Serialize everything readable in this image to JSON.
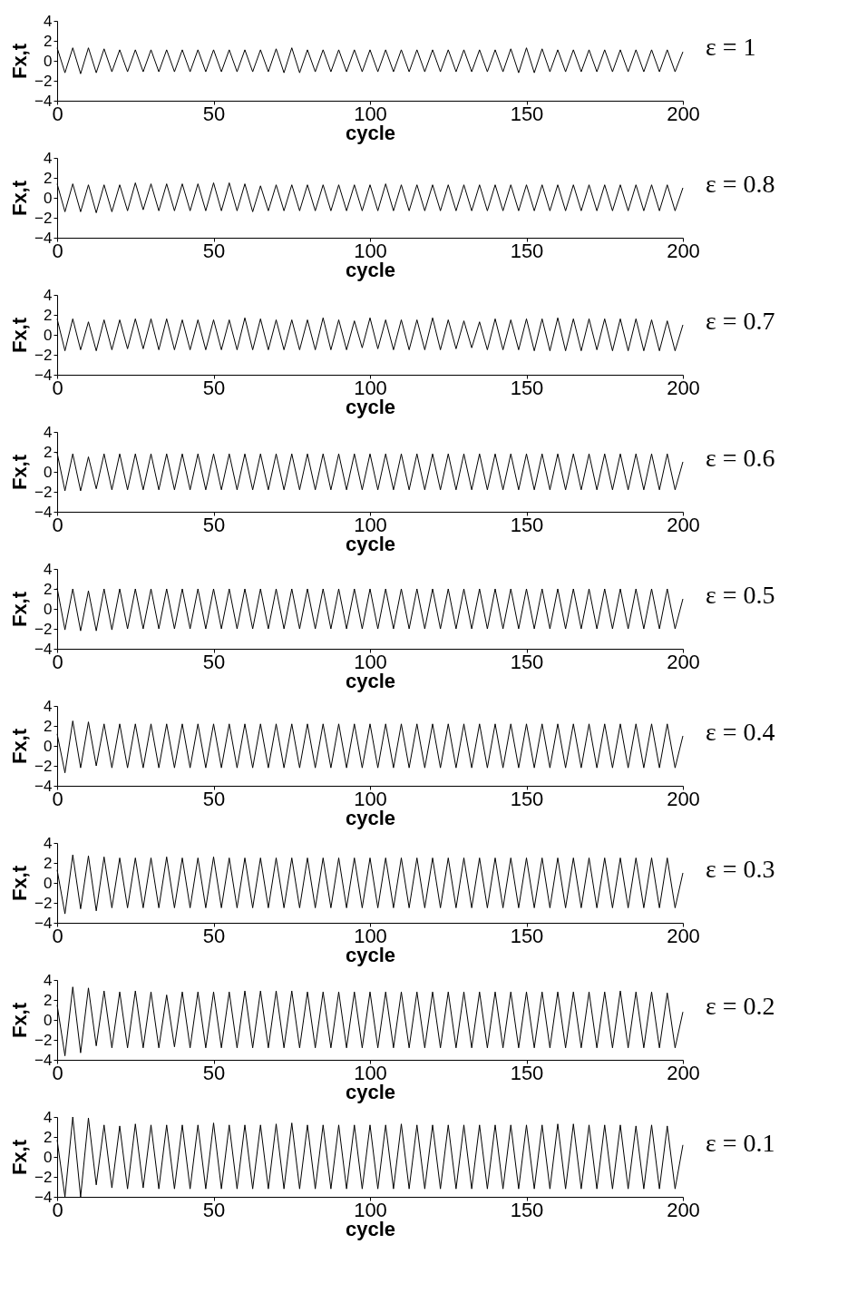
{
  "chart_data": [
    {
      "type": "line",
      "xlabel": "cycle",
      "ylabel": "Fx,t",
      "annotations": [
        "ε = 1"
      ],
      "color": "#000000",
      "xlim": [
        0,
        200
      ],
      "xticks": [
        0,
        50,
        100,
        150,
        200
      ],
      "ylim": [
        -4,
        4
      ],
      "yticks": [
        -4,
        -2,
        0,
        2,
        4
      ],
      "x": [
        0,
        2.5,
        5,
        7.5,
        10,
        12.5,
        15,
        17.5,
        20,
        22.5,
        25,
        27.5,
        30,
        32.5,
        35,
        37.5,
        40,
        42.5,
        45,
        47.5,
        50,
        52.5,
        55,
        57.5,
        60,
        62.5,
        65,
        67.5,
        70,
        72.5,
        75,
        77.5,
        80,
        82.5,
        85,
        87.5,
        90,
        92.5,
        95,
        97.5,
        100,
        102.5,
        105,
        107.5,
        110,
        112.5,
        115,
        117.5,
        120,
        122.5,
        125,
        127.5,
        130,
        132.5,
        135,
        137.5,
        140,
        142.5,
        145,
        147.5,
        150,
        152.5,
        155,
        157.5,
        160,
        162.5,
        165,
        167.5,
        170,
        172.5,
        175,
        177.5,
        180,
        182.5,
        185,
        187.5,
        190,
        192.5,
        195,
        197.5,
        200
      ],
      "values": [
        1.3,
        -1.2,
        1.3,
        -1.3,
        1.3,
        -1.2,
        1.2,
        -1.1,
        1.1,
        -1.1,
        1.1,
        -1.1,
        1.1,
        -1.1,
        1.1,
        -1.1,
        1.1,
        -1.1,
        1.1,
        -1.1,
        1.1,
        -1.1,
        1.1,
        -1.1,
        1.1,
        -1.1,
        1.1,
        -1.1,
        1.2,
        -1.2,
        1.3,
        -1.2,
        1.1,
        -1.1,
        1.1,
        -1.1,
        1.1,
        -1.1,
        1.1,
        -1.1,
        1.1,
        -1.1,
        1.1,
        -1.1,
        1.1,
        -1.1,
        1.1,
        -1.1,
        1.1,
        -1.1,
        1.1,
        -1.1,
        1.1,
        -1.1,
        1.1,
        -1.1,
        1.1,
        -1.1,
        1.2,
        -1.2,
        1.3,
        -1.2,
        1.2,
        -1.1,
        1.1,
        -1.1,
        1.1,
        -1.1,
        1.1,
        -1.1,
        1.1,
        -1.1,
        1.1,
        -1.1,
        1.1,
        -1.1,
        1.1,
        -1.1,
        1.1,
        -1.1,
        0.9
      ]
    },
    {
      "type": "line",
      "xlabel": "cycle",
      "ylabel": "Fx,t",
      "annotations": [
        "ε = 0.8"
      ],
      "color": "#000000",
      "xlim": [
        0,
        200
      ],
      "xticks": [
        0,
        50,
        100,
        150,
        200
      ],
      "ylim": [
        -4,
        4
      ],
      "yticks": [
        -4,
        -2,
        0,
        2,
        4
      ],
      "x": [
        0,
        2.5,
        5,
        7.5,
        10,
        12.5,
        15,
        17.5,
        20,
        22.5,
        25,
        27.5,
        30,
        32.5,
        35,
        37.5,
        40,
        42.5,
        45,
        47.5,
        50,
        52.5,
        55,
        57.5,
        60,
        62.5,
        65,
        67.5,
        70,
        72.5,
        75,
        77.5,
        80,
        82.5,
        85,
        87.5,
        90,
        92.5,
        95,
        97.5,
        100,
        102.5,
        105,
        107.5,
        110,
        112.5,
        115,
        117.5,
        120,
        122.5,
        125,
        127.5,
        130,
        132.5,
        135,
        137.5,
        140,
        142.5,
        145,
        147.5,
        150,
        152.5,
        155,
        157.5,
        160,
        162.5,
        165,
        167.5,
        170,
        172.5,
        175,
        177.5,
        180,
        182.5,
        185,
        187.5,
        190,
        192.5,
        195,
        197.5,
        200
      ],
      "values": [
        1.4,
        -1.4,
        1.4,
        -1.4,
        1.3,
        -1.5,
        1.3,
        -1.4,
        1.3,
        -1.3,
        1.5,
        -1.2,
        1.4,
        -1.3,
        1.4,
        -1.3,
        1.4,
        -1.3,
        1.4,
        -1.3,
        1.5,
        -1.3,
        1.5,
        -1.3,
        1.4,
        -1.4,
        1.2,
        -1.3,
        1.3,
        -1.3,
        1.3,
        -1.3,
        1.3,
        -1.3,
        1.3,
        -1.3,
        1.3,
        -1.3,
        1.3,
        -1.3,
        1.3,
        -1.3,
        1.4,
        -1.3,
        1.3,
        -1.3,
        1.3,
        -1.3,
        1.3,
        -1.3,
        1.3,
        -1.3,
        1.3,
        -1.3,
        1.3,
        -1.3,
        1.3,
        -1.3,
        1.3,
        -1.3,
        1.3,
        -1.3,
        1.3,
        -1.3,
        1.3,
        -1.3,
        1.3,
        -1.3,
        1.3,
        -1.3,
        1.3,
        -1.3,
        1.3,
        -1.3,
        1.3,
        -1.3,
        1.3,
        -1.3,
        1.3,
        -1.3,
        1.0
      ]
    },
    {
      "type": "line",
      "xlabel": "cycle",
      "ylabel": "Fx,t",
      "annotations": [
        "ε = 0.7"
      ],
      "color": "#000000",
      "xlim": [
        0,
        200
      ],
      "xticks": [
        0,
        50,
        100,
        150,
        200
      ],
      "ylim": [
        -4,
        4
      ],
      "yticks": [
        -4,
        -2,
        0,
        2,
        4
      ],
      "x": [
        0,
        2.5,
        5,
        7.5,
        10,
        12.5,
        15,
        17.5,
        20,
        22.5,
        25,
        27.5,
        30,
        32.5,
        35,
        37.5,
        40,
        42.5,
        45,
        47.5,
        50,
        52.5,
        55,
        57.5,
        60,
        62.5,
        65,
        67.5,
        70,
        72.5,
        75,
        77.5,
        80,
        82.5,
        85,
        87.5,
        90,
        92.5,
        95,
        97.5,
        100,
        102.5,
        105,
        107.5,
        110,
        112.5,
        115,
        117.5,
        120,
        122.5,
        125,
        127.5,
        130,
        132.5,
        135,
        137.5,
        140,
        142.5,
        145,
        147.5,
        150,
        152.5,
        155,
        157.5,
        160,
        162.5,
        165,
        167.5,
        170,
        172.5,
        175,
        177.5,
        180,
        182.5,
        185,
        187.5,
        190,
        192.5,
        195,
        197.5,
        200
      ],
      "values": [
        1.6,
        -1.6,
        1.6,
        -1.5,
        1.3,
        -1.6,
        1.5,
        -1.5,
        1.5,
        -1.4,
        1.6,
        -1.4,
        1.6,
        -1.5,
        1.6,
        -1.5,
        1.5,
        -1.5,
        1.5,
        -1.5,
        1.5,
        -1.5,
        1.5,
        -1.5,
        1.7,
        -1.5,
        1.6,
        -1.5,
        1.5,
        -1.5,
        1.5,
        -1.5,
        1.5,
        -1.5,
        1.7,
        -1.5,
        1.5,
        -1.5,
        1.4,
        -1.3,
        1.7,
        -1.4,
        1.5,
        -1.5,
        1.5,
        -1.5,
        1.5,
        -1.5,
        1.7,
        -1.5,
        1.5,
        -1.4,
        1.4,
        -1.3,
        1.3,
        -1.5,
        1.6,
        -1.5,
        1.5,
        -1.5,
        1.6,
        -1.6,
        1.6,
        -1.6,
        1.7,
        -1.6,
        1.6,
        -1.6,
        1.6,
        -1.5,
        1.6,
        -1.6,
        1.6,
        -1.6,
        1.6,
        -1.6,
        1.5,
        -1.6,
        1.4,
        -1.6,
        1.0
      ]
    },
    {
      "type": "line",
      "xlabel": "cycle",
      "ylabel": "Fx,t",
      "annotations": [
        "ε = 0.6"
      ],
      "color": "#000000",
      "xlim": [
        0,
        200
      ],
      "xticks": [
        0,
        50,
        100,
        150,
        200
      ],
      "ylim": [
        -4,
        4
      ],
      "yticks": [
        -4,
        -2,
        0,
        2,
        4
      ],
      "x": [
        0,
        2.5,
        5,
        7.5,
        10,
        12.5,
        15,
        17.5,
        20,
        22.5,
        25,
        27.5,
        30,
        32.5,
        35,
        37.5,
        40,
        42.5,
        45,
        47.5,
        50,
        52.5,
        55,
        57.5,
        60,
        62.5,
        65,
        67.5,
        70,
        72.5,
        75,
        77.5,
        80,
        82.5,
        85,
        87.5,
        90,
        92.5,
        95,
        97.5,
        100,
        102.5,
        105,
        107.5,
        110,
        112.5,
        115,
        117.5,
        120,
        122.5,
        125,
        127.5,
        130,
        132.5,
        135,
        137.5,
        140,
        142.5,
        145,
        147.5,
        150,
        152.5,
        155,
        157.5,
        160,
        162.5,
        165,
        167.5,
        170,
        172.5,
        175,
        177.5,
        180,
        182.5,
        185,
        187.5,
        190,
        192.5,
        195,
        197.5,
        200
      ],
      "values": [
        1.9,
        -1.9,
        1.8,
        -1.9,
        1.5,
        -1.7,
        1.8,
        -1.8,
        1.8,
        -1.8,
        1.8,
        -1.8,
        1.8,
        -1.8,
        1.8,
        -1.8,
        1.8,
        -1.8,
        1.8,
        -1.8,
        1.8,
        -1.8,
        1.8,
        -1.8,
        1.8,
        -1.8,
        1.8,
        -1.8,
        1.8,
        -1.8,
        1.8,
        -1.8,
        1.8,
        -1.8,
        1.8,
        -1.8,
        1.8,
        -1.8,
        1.8,
        -1.8,
        1.8,
        -1.8,
        1.8,
        -1.8,
        1.8,
        -1.8,
        1.8,
        -1.8,
        1.8,
        -1.8,
        1.8,
        -1.8,
        1.8,
        -1.8,
        1.8,
        -1.8,
        1.8,
        -1.8,
        1.8,
        -1.8,
        1.8,
        -1.8,
        1.8,
        -1.8,
        1.8,
        -1.8,
        1.8,
        -1.8,
        1.8,
        -1.8,
        1.8,
        -1.8,
        1.8,
        -1.8,
        1.8,
        -1.8,
        1.8,
        -1.8,
        1.8,
        -1.8,
        1.0
      ]
    },
    {
      "type": "line",
      "xlabel": "cycle",
      "ylabel": "Fx,t",
      "annotations": [
        "ε = 0.5"
      ],
      "color": "#000000",
      "xlim": [
        0,
        200
      ],
      "xticks": [
        0,
        50,
        100,
        150,
        200
      ],
      "ylim": [
        -4,
        4
      ],
      "yticks": [
        -4,
        -2,
        0,
        2,
        4
      ],
      "x": [
        0,
        2.5,
        5,
        7.5,
        10,
        12.5,
        15,
        17.5,
        20,
        22.5,
        25,
        27.5,
        30,
        32.5,
        35,
        37.5,
        40,
        42.5,
        45,
        47.5,
        50,
        52.5,
        55,
        57.5,
        60,
        62.5,
        65,
        67.5,
        70,
        72.5,
        75,
        77.5,
        80,
        82.5,
        85,
        87.5,
        90,
        92.5,
        95,
        97.5,
        100,
        102.5,
        105,
        107.5,
        110,
        112.5,
        115,
        117.5,
        120,
        122.5,
        125,
        127.5,
        130,
        132.5,
        135,
        137.5,
        140,
        142.5,
        145,
        147.5,
        150,
        152.5,
        155,
        157.5,
        160,
        162.5,
        165,
        167.5,
        170,
        172.5,
        175,
        177.5,
        180,
        182.5,
        185,
        187.5,
        190,
        192.5,
        195,
        197.5,
        200
      ],
      "values": [
        2.1,
        -2.1,
        2.0,
        -2.2,
        1.8,
        -2.2,
        2.0,
        -2.1,
        2.0,
        -2.0,
        2.0,
        -2.0,
        2.0,
        -2.0,
        2.0,
        -2.0,
        2.0,
        -2.0,
        2.0,
        -2.0,
        2.0,
        -2.0,
        2.0,
        -2.0,
        2.0,
        -2.0,
        2.0,
        -2.0,
        2.0,
        -2.0,
        2.0,
        -2.0,
        2.0,
        -2.0,
        2.0,
        -2.0,
        2.0,
        -2.0,
        2.0,
        -2.0,
        2.0,
        -2.0,
        2.0,
        -2.0,
        2.0,
        -2.0,
        2.0,
        -2.0,
        2.0,
        -2.0,
        2.0,
        -2.0,
        2.0,
        -2.0,
        2.0,
        -2.0,
        2.0,
        -2.0,
        2.0,
        -2.0,
        2.0,
        -2.0,
        2.0,
        -2.0,
        2.0,
        -2.0,
        2.0,
        -2.0,
        2.0,
        -2.0,
        2.0,
        -2.0,
        2.0,
        -2.0,
        2.0,
        -2.0,
        2.0,
        -2.0,
        2.0,
        -2.0,
        1.0
      ]
    },
    {
      "type": "line",
      "xlabel": "cycle",
      "ylabel": "Fx,t",
      "annotations": [
        "ε = 0.4"
      ],
      "color": "#000000",
      "xlim": [
        0,
        200
      ],
      "xticks": [
        0,
        50,
        100,
        150,
        200
      ],
      "ylim": [
        -4,
        4
      ],
      "yticks": [
        -4,
        -2,
        0,
        2,
        4
      ],
      "x": [
        0,
        2.5,
        5,
        7.5,
        10,
        12.5,
        15,
        17.5,
        20,
        22.5,
        25,
        27.5,
        30,
        32.5,
        35,
        37.5,
        40,
        42.5,
        45,
        47.5,
        50,
        52.5,
        55,
        57.5,
        60,
        62.5,
        65,
        67.5,
        70,
        72.5,
        75,
        77.5,
        80,
        82.5,
        85,
        87.5,
        90,
        92.5,
        95,
        97.5,
        100,
        102.5,
        105,
        107.5,
        110,
        112.5,
        115,
        117.5,
        120,
        122.5,
        125,
        127.5,
        130,
        132.5,
        135,
        137.5,
        140,
        142.5,
        145,
        147.5,
        150,
        152.5,
        155,
        157.5,
        160,
        162.5,
        165,
        167.5,
        170,
        172.5,
        175,
        177.5,
        180,
        182.5,
        185,
        187.5,
        190,
        192.5,
        195,
        197.5,
        200
      ],
      "values": [
        1.2,
        -2.7,
        2.5,
        -2.2,
        2.4,
        -2.0,
        2.2,
        -2.2,
        2.2,
        -2.2,
        2.2,
        -2.2,
        2.2,
        -2.2,
        2.2,
        -2.2,
        2.2,
        -2.2,
        2.2,
        -2.2,
        2.2,
        -2.2,
        2.2,
        -2.2,
        2.2,
        -2.2,
        2.2,
        -2.2,
        2.2,
        -2.2,
        2.2,
        -2.2,
        2.2,
        -2.2,
        2.2,
        -2.2,
        2.2,
        -2.2,
        2.2,
        -2.2,
        2.2,
        -2.2,
        2.2,
        -2.2,
        2.2,
        -2.2,
        2.2,
        -2.2,
        2.2,
        -2.2,
        2.2,
        -2.2,
        2.2,
        -2.2,
        2.2,
        -2.2,
        2.2,
        -2.2,
        2.2,
        -2.2,
        2.2,
        -2.2,
        2.2,
        -2.2,
        2.2,
        -2.2,
        2.2,
        -2.2,
        2.2,
        -2.2,
        2.2,
        -2.2,
        2.2,
        -2.2,
        2.2,
        -2.2,
        2.2,
        -2.2,
        2.2,
        -2.2,
        1.0
      ]
    },
    {
      "type": "line",
      "xlabel": "cycle",
      "ylabel": "Fx,t",
      "annotations": [
        "ε = 0.3"
      ],
      "color": "#000000",
      "xlim": [
        0,
        200
      ],
      "xticks": [
        0,
        50,
        100,
        150,
        200
      ],
      "ylim": [
        -4,
        4
      ],
      "yticks": [
        -4,
        -2,
        0,
        2,
        4
      ],
      "x": [
        0,
        2.5,
        5,
        7.5,
        10,
        12.5,
        15,
        17.5,
        20,
        22.5,
        25,
        27.5,
        30,
        32.5,
        35,
        37.5,
        40,
        42.5,
        45,
        47.5,
        50,
        52.5,
        55,
        57.5,
        60,
        62.5,
        65,
        67.5,
        70,
        72.5,
        75,
        77.5,
        80,
        82.5,
        85,
        87.5,
        90,
        92.5,
        95,
        97.5,
        100,
        102.5,
        105,
        107.5,
        110,
        112.5,
        115,
        117.5,
        120,
        122.5,
        125,
        127.5,
        130,
        132.5,
        135,
        137.5,
        140,
        142.5,
        145,
        147.5,
        150,
        152.5,
        155,
        157.5,
        160,
        162.5,
        165,
        167.5,
        170,
        172.5,
        175,
        177.5,
        180,
        182.5,
        185,
        187.5,
        190,
        192.5,
        195,
        197.5,
        200
      ],
      "values": [
        1.3,
        -3.1,
        2.8,
        -2.6,
        2.7,
        -2.8,
        2.6,
        -2.5,
        2.5,
        -2.5,
        2.5,
        -2.5,
        2.5,
        -2.5,
        2.6,
        -2.5,
        2.5,
        -2.5,
        2.5,
        -2.5,
        2.6,
        -2.5,
        2.5,
        -2.5,
        2.5,
        -2.5,
        2.5,
        -2.5,
        2.5,
        -2.5,
        2.5,
        -2.5,
        2.5,
        -2.5,
        2.5,
        -2.5,
        2.5,
        -2.5,
        2.5,
        -2.5,
        2.5,
        -2.5,
        2.5,
        -2.5,
        2.5,
        -2.5,
        2.5,
        -2.5,
        2.5,
        -2.5,
        2.5,
        -2.5,
        2.5,
        -2.5,
        2.5,
        -2.5,
        2.5,
        -2.5,
        2.5,
        -2.5,
        2.5,
        -2.5,
        2.5,
        -2.5,
        2.5,
        -2.5,
        2.5,
        -2.5,
        2.5,
        -2.5,
        2.5,
        -2.5,
        2.5,
        -2.5,
        2.5,
        -2.5,
        2.5,
        -2.5,
        2.5,
        -2.5,
        1.0
      ]
    },
    {
      "type": "line",
      "xlabel": "cycle",
      "ylabel": "Fx,t",
      "annotations": [
        "ε = 0.2"
      ],
      "color": "#000000",
      "xlim": [
        0,
        200
      ],
      "xticks": [
        0,
        50,
        100,
        150,
        200
      ],
      "ylim": [
        -4,
        4
      ],
      "yticks": [
        -4,
        -2,
        0,
        2,
        4
      ],
      "x": [
        0,
        2.5,
        5,
        7.5,
        10,
        12.5,
        15,
        17.5,
        20,
        22.5,
        25,
        27.5,
        30,
        32.5,
        35,
        37.5,
        40,
        42.5,
        45,
        47.5,
        50,
        52.5,
        55,
        57.5,
        60,
        62.5,
        65,
        67.5,
        70,
        72.5,
        75,
        77.5,
        80,
        82.5,
        85,
        87.5,
        90,
        92.5,
        95,
        97.5,
        100,
        102.5,
        105,
        107.5,
        110,
        112.5,
        115,
        117.5,
        120,
        122.5,
        125,
        127.5,
        130,
        132.5,
        135,
        137.5,
        140,
        142.5,
        145,
        147.5,
        150,
        152.5,
        155,
        157.5,
        160,
        162.5,
        165,
        167.5,
        170,
        172.5,
        175,
        177.5,
        180,
        182.5,
        185,
        187.5,
        190,
        192.5,
        195,
        197.5,
        200
      ],
      "values": [
        1.5,
        -3.6,
        3.3,
        -3.3,
        3.2,
        -2.6,
        2.9,
        -2.8,
        2.8,
        -2.8,
        2.9,
        -2.8,
        2.8,
        -2.8,
        2.5,
        -2.7,
        2.8,
        -2.8,
        2.8,
        -2.8,
        2.8,
        -2.8,
        2.8,
        -2.8,
        2.9,
        -2.8,
        2.9,
        -2.8,
        2.9,
        -2.8,
        2.9,
        -2.8,
        2.8,
        -2.8,
        2.8,
        -2.8,
        2.8,
        -2.8,
        2.8,
        -2.8,
        2.8,
        -2.8,
        2.8,
        -2.8,
        2.8,
        -2.8,
        2.8,
        -2.8,
        2.8,
        -2.8,
        2.8,
        -2.8,
        2.8,
        -2.8,
        2.8,
        -2.8,
        2.8,
        -2.8,
        2.8,
        -2.8,
        2.8,
        -2.8,
        2.8,
        -2.8,
        2.8,
        -2.8,
        2.8,
        -2.8,
        2.8,
        -2.8,
        2.8,
        -2.8,
        2.9,
        -2.8,
        2.8,
        -2.8,
        2.8,
        -2.8,
        2.7,
        -2.8,
        0.8
      ]
    },
    {
      "type": "line",
      "xlabel": "cycle",
      "ylabel": "Fx,t",
      "annotations": [
        "ε = 0.1"
      ],
      "color": "#000000",
      "xlim": [
        0,
        200
      ],
      "xticks": [
        0,
        50,
        100,
        150,
        200
      ],
      "ylim": [
        -4,
        4
      ],
      "yticks": [
        -4,
        -2,
        0,
        2,
        4
      ],
      "x": [
        0,
        2.5,
        5,
        7.5,
        10,
        12.5,
        15,
        17.5,
        20,
        22.5,
        25,
        27.5,
        30,
        32.5,
        35,
        37.5,
        40,
        42.5,
        45,
        47.5,
        50,
        52.5,
        55,
        57.5,
        60,
        62.5,
        65,
        67.5,
        70,
        72.5,
        75,
        77.5,
        80,
        82.5,
        85,
        87.5,
        90,
        92.5,
        95,
        97.5,
        100,
        102.5,
        105,
        107.5,
        110,
        112.5,
        115,
        117.5,
        120,
        122.5,
        125,
        127.5,
        130,
        132.5,
        135,
        137.5,
        140,
        142.5,
        145,
        147.5,
        150,
        152.5,
        155,
        157.5,
        160,
        162.5,
        165,
        167.5,
        170,
        172.5,
        175,
        177.5,
        180,
        182.5,
        185,
        187.5,
        190,
        192.5,
        195,
        197.5,
        200
      ],
      "values": [
        1.7,
        -4.0,
        4.0,
        -4.0,
        3.9,
        -2.8,
        3.2,
        -3.1,
        3.1,
        -3.2,
        3.3,
        -3.1,
        3.2,
        -3.2,
        3.2,
        -3.2,
        3.2,
        -3.2,
        3.2,
        -3.2,
        3.4,
        -3.2,
        3.2,
        -3.2,
        3.2,
        -3.2,
        3.2,
        -3.2,
        3.3,
        -3.2,
        3.4,
        -3.2,
        3.2,
        -3.2,
        3.2,
        -3.2,
        3.2,
        -3.2,
        3.2,
        -3.2,
        3.2,
        -3.2,
        3.2,
        -3.2,
        3.3,
        -3.2,
        3.2,
        -3.2,
        3.2,
        -3.2,
        3.2,
        -3.2,
        3.2,
        -3.2,
        3.2,
        -3.2,
        3.2,
        -3.2,
        3.2,
        -3.2,
        3.2,
        -3.2,
        3.2,
        -3.2,
        3.3,
        -3.2,
        3.3,
        -3.2,
        3.2,
        -3.2,
        3.2,
        -3.2,
        3.2,
        -3.2,
        3.1,
        -3.2,
        3.2,
        -3.2,
        3.1,
        -3.2,
        1.2
      ]
    }
  ]
}
